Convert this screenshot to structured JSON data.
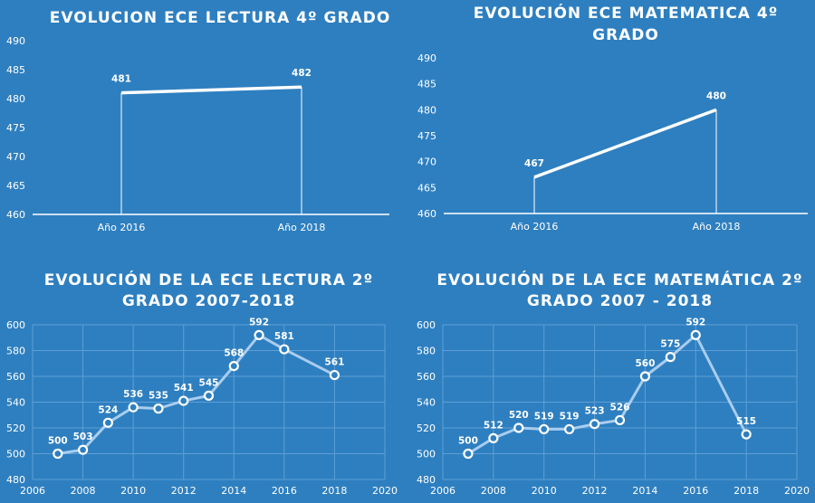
{
  "chart_data": [
    {
      "type": "line",
      "title_lines": [
        "EVOLUCION  ECE LECTURA 4º GRADO"
      ],
      "categories": [
        "Año 2016",
        "Año 2018"
      ],
      "values": [
        481,
        482
      ],
      "data_labels": [
        "481",
        "482"
      ],
      "ylim": [
        460,
        490
      ],
      "yticks": [
        460,
        465,
        470,
        475,
        480,
        485,
        490
      ],
      "ytick_labels": [
        "460",
        "465",
        "470",
        "475",
        "480",
        "485",
        "490"
      ],
      "grid": false,
      "drop_lines": true,
      "line_color": "#ffffff"
    },
    {
      "type": "line",
      "title_lines": [
        "EVOLUCIÓN  ECE MATEMATICA 4º",
        "GRADO"
      ],
      "categories": [
        "Año 2016",
        "Año 2018"
      ],
      "values": [
        467,
        480
      ],
      "data_labels": [
        "467",
        "480"
      ],
      "ylim": [
        460,
        490
      ],
      "yticks": [
        460,
        465,
        470,
        475,
        480,
        485,
        490
      ],
      "ytick_labels": [
        "460",
        "465",
        "470",
        "475",
        "480",
        "485",
        "490"
      ],
      "grid": false,
      "drop_lines": true,
      "line_color": "#ffffff"
    },
    {
      "type": "scatter",
      "title_lines": [
        "EVOLUCIÓN  DE LA ECE LECTURA 2º",
        "GRADO 2007-2018"
      ],
      "x": [
        2007,
        2008,
        2009,
        2010,
        2011,
        2012,
        2013,
        2014,
        2015,
        2016,
        2018
      ],
      "y": [
        500,
        503,
        524,
        536,
        535,
        541,
        545,
        568,
        592,
        581,
        561
      ],
      "data_labels": [
        "500",
        "503",
        "524",
        "536",
        "535",
        "541",
        "545",
        "568",
        "592",
        "581",
        "561"
      ],
      "xlim": [
        2006,
        2020
      ],
      "ylim": [
        480,
        600
      ],
      "xticks": [
        2006,
        2008,
        2010,
        2012,
        2014,
        2016,
        2018,
        2020
      ],
      "xtick_labels": [
        "2006",
        "2008",
        "2010",
        "2012",
        "2014",
        "2016",
        "2018",
        "2020"
      ],
      "yticks": [
        480,
        500,
        520,
        540,
        560,
        580,
        600
      ],
      "ytick_labels": [
        "480",
        "500",
        "520",
        "540",
        "560",
        "580",
        "600"
      ],
      "grid": true,
      "line_color": "#a9cdef"
    },
    {
      "type": "scatter",
      "title_lines": [
        "EVOLUCIÓN  DE LA ECE MATEMÁTICA 2º",
        "GRADO 2007 - 2018"
      ],
      "x": [
        2007,
        2008,
        2009,
        2010,
        2011,
        2012,
        2013,
        2014,
        2015,
        2016,
        2018
      ],
      "y": [
        500,
        512,
        520,
        519,
        519,
        523,
        526,
        560,
        575,
        592,
        515
      ],
      "data_labels": [
        "500",
        "512",
        "520",
        "519",
        "519",
        "523",
        "526",
        "560",
        "575",
        "592",
        "515"
      ],
      "xlim": [
        2006,
        2020
      ],
      "ylim": [
        480,
        600
      ],
      "xticks": [
        2006,
        2008,
        2010,
        2012,
        2014,
        2016,
        2018,
        2020
      ],
      "xtick_labels": [
        "2006",
        "2008",
        "2010",
        "2012",
        "2014",
        "2016",
        "2018",
        "2020"
      ],
      "yticks": [
        480,
        500,
        520,
        540,
        560,
        580,
        600
      ],
      "ytick_labels": [
        "480",
        "500",
        "520",
        "540",
        "560",
        "580",
        "600"
      ],
      "grid": true,
      "line_color": "#a9cdef"
    }
  ]
}
